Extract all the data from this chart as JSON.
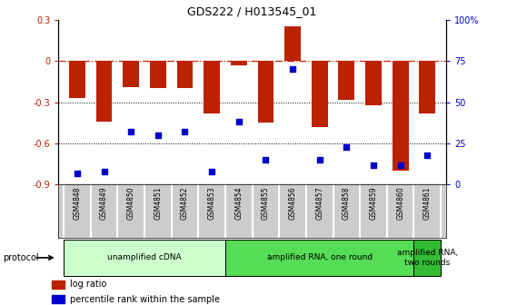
{
  "title": "GDS222 / H013545_01",
  "samples": [
    "GSM4848",
    "GSM4849",
    "GSM4850",
    "GSM4851",
    "GSM4852",
    "GSM4853",
    "GSM4854",
    "GSM4855",
    "GSM4856",
    "GSM4857",
    "GSM4858",
    "GSM4859",
    "GSM4860",
    "GSM4861"
  ],
  "log_ratio": [
    -0.27,
    -0.44,
    -0.19,
    -0.2,
    -0.2,
    -0.38,
    -0.03,
    -0.45,
    0.25,
    -0.48,
    -0.28,
    -0.32,
    -0.8,
    -0.38
  ],
  "percentile": [
    7,
    8,
    32,
    30,
    32,
    8,
    38,
    15,
    70,
    15,
    23,
    12,
    12,
    18
  ],
  "ylim_left": [
    -0.9,
    0.3
  ],
  "ylim_right": [
    0,
    100
  ],
  "yticks_left": [
    -0.9,
    -0.6,
    -0.3,
    0.0,
    0.3
  ],
  "ytick_labels_left": [
    "-0.9",
    "-0.6",
    "-0.3",
    "0",
    "0.3"
  ],
  "yticks_right": [
    0,
    25,
    50,
    75,
    100
  ],
  "ytick_labels_right": [
    "0",
    "25",
    "50",
    "75",
    "100%"
  ],
  "bar_color": "#bb2200",
  "dot_color": "#0000cc",
  "hline_color": "#cc2200",
  "dotline_color": "#000000",
  "protocols": [
    {
      "label": "unamplified cDNA",
      "start": 0,
      "end": 5,
      "color": "#ccffcc"
    },
    {
      "label": "amplified RNA, one round",
      "start": 6,
      "end": 12,
      "color": "#55dd55"
    },
    {
      "label": "amplified RNA,\ntwo rounds",
      "start": 13,
      "end": 13,
      "color": "#33bb33"
    }
  ],
  "legend_items": [
    {
      "label": "log ratio",
      "color": "#bb2200"
    },
    {
      "label": "percentile rank within the sample",
      "color": "#0000cc"
    }
  ],
  "protocol_label": "protocol",
  "sample_box_color": "#cccccc",
  "sample_divider_color": "#ffffff"
}
